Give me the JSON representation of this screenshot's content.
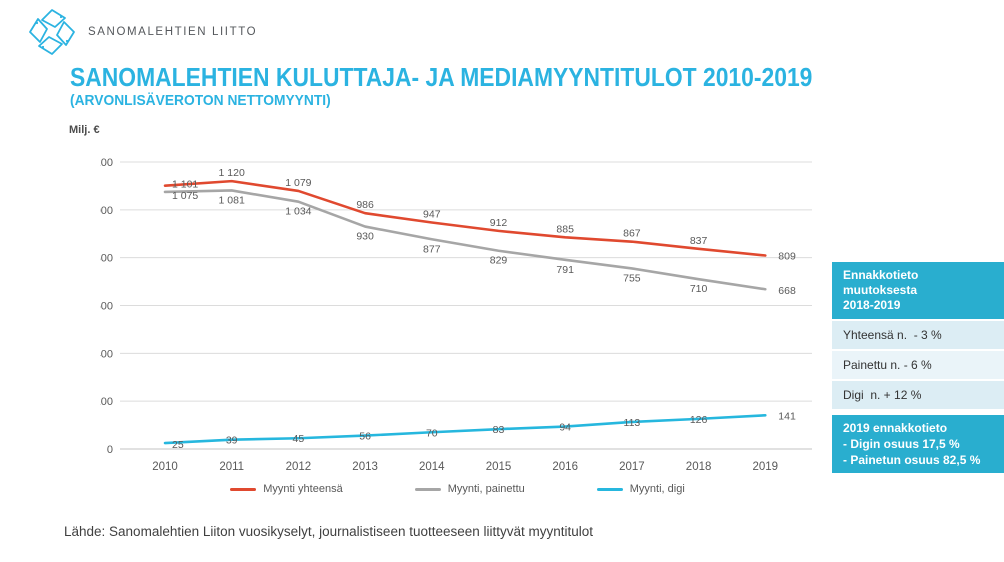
{
  "brand": {
    "logo_text": "SANOMALEHTIEN LIITTO"
  },
  "header": {
    "title": "SANOMALEHTIEN KULUTTAJA- JA MEDIAMYYNTITULOT 2010-2019",
    "subtitle": "(ARVONLISÄVEROTON NETTOMYYNTI)"
  },
  "chart_data": {
    "type": "line",
    "title": "SANOMALEHTIEN KULUTTAJA- JA MEDIAMYYNTITULOT 2010-2019",
    "xlabel": "",
    "ylabel": "Milj. €",
    "ylim": [
      0,
      1200
    ],
    "ytick_step": 200,
    "grid": true,
    "legend_position": "bottom",
    "categories": [
      "2010",
      "2011",
      "2012",
      "2013",
      "2014",
      "2015",
      "2016",
      "2017",
      "2018",
      "2019"
    ],
    "series": [
      {
        "name": "Myynti yhteensä",
        "color": "#e0492f",
        "values": [
          1101,
          1120,
          1079,
          986,
          947,
          912,
          885,
          867,
          837,
          809
        ],
        "labels": [
          "1 101",
          "1 120",
          "1 079",
          "986",
          "947",
          "912",
          "885",
          "867",
          "837",
          "809"
        ]
      },
      {
        "name": "Myynti, painettu",
        "color": "#a6a6a6",
        "values": [
          1075,
          1081,
          1034,
          930,
          877,
          829,
          791,
          755,
          710,
          668
        ],
        "labels": [
          "1 075",
          "1 081",
          "1 034",
          "930",
          "877",
          "829",
          "791",
          "755",
          "710",
          "668"
        ]
      },
      {
        "name": "Myynti, digi",
        "color": "#26b7de",
        "values": [
          25,
          39,
          45,
          56,
          70,
          83,
          94,
          113,
          126,
          141
        ],
        "labels": [
          "25",
          "39",
          "45",
          "56",
          "70",
          "83",
          "94",
          "113",
          "126",
          "141"
        ]
      }
    ]
  },
  "panel": {
    "change_box": {
      "lines": [
        "Ennakkotieto",
        "muutoksesta",
        "2018-2019"
      ]
    },
    "rows": [
      {
        "label": "Yhteensä n.  - 3 %"
      },
      {
        "label": "Painettu n. - 6 %"
      },
      {
        "label": "Digi  n. + 12 %"
      }
    ],
    "forecast_box": {
      "lines": [
        "2019 ennakkotieto",
        "- Digin osuus 17,5 %",
        "- Painetun osuus 82,5 %"
      ]
    }
  },
  "footer": {
    "source": "Lähde: Sanomalehtien Liiton vuosikyselyt, journalistiseen tuotteeseen liittyvät myyntitulot"
  },
  "colors": {
    "accent": "#2bb3e1",
    "panel_cyan": "#29aecf",
    "row_light": "#dcedf4",
    "row_lighter": "#eaf4f9",
    "series_total": "#e0492f",
    "series_printed": "#a6a6a6",
    "series_digital": "#26b7de"
  }
}
